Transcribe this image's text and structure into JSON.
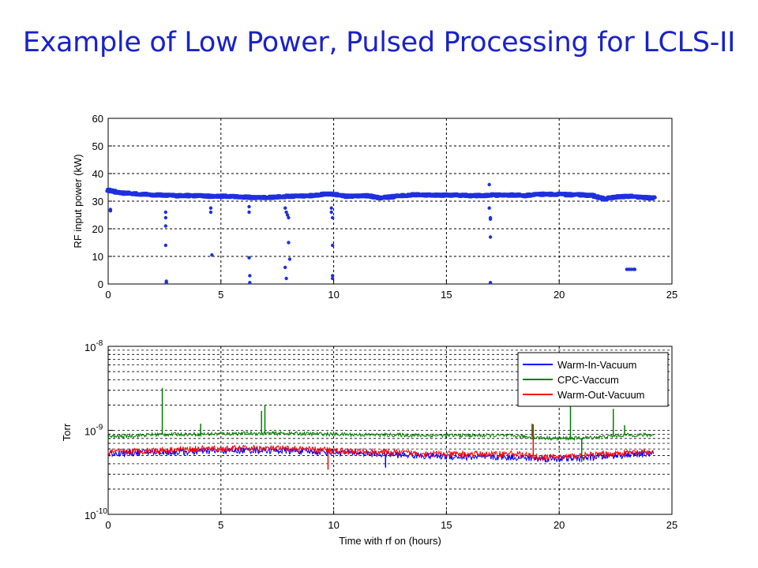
{
  "slide": {
    "title": "Example of Low Power, Pulsed Processing for LCLS-II"
  },
  "chart_data": [
    {
      "type": "scatter",
      "title": "",
      "xlabel": "",
      "ylabel": "RF input power (kW)",
      "xlim": [
        0,
        25
      ],
      "ylim": [
        0,
        60
      ],
      "xticks": [
        0,
        5,
        10,
        15,
        20,
        25
      ],
      "yticks": [
        0,
        10,
        20,
        30,
        40,
        50,
        60
      ],
      "grid": true,
      "marker_color": "#1f2fe0",
      "series": [
        {
          "x": [
            0,
            0.5,
            1,
            1.5,
            2,
            2.5,
            3,
            3.5,
            4,
            4.5,
            5,
            5.5,
            6,
            6.5,
            7,
            7.5,
            8,
            8.5,
            9,
            9.5,
            10,
            10.5,
            11,
            11.5,
            12,
            12.5,
            13,
            13.5,
            14,
            14.5,
            15,
            15.5,
            16,
            16.5,
            17,
            17.5,
            18,
            18.5,
            19,
            19.5,
            20,
            20.5,
            21,
            21.5,
            22,
            22.5,
            23,
            23.5,
            24,
            24.2
          ],
          "y": [
            34,
            33,
            32.8,
            32.5,
            32.3,
            32.2,
            32,
            32,
            32,
            31.8,
            31.8,
            31.8,
            31.5,
            31.3,
            31.3,
            31.5,
            31.8,
            31.8,
            32,
            32.5,
            32.5,
            31.8,
            31.8,
            32,
            31.2,
            31.5,
            32,
            32.3,
            32.3,
            32.2,
            32.2,
            32.2,
            32,
            32,
            32.2,
            32.2,
            32.2,
            32,
            32.5,
            32.5,
            32.5,
            32.3,
            32.3,
            32,
            30.8,
            31.5,
            31.8,
            31.5,
            31.2,
            31.2
          ]
        },
        {
          "name": "",
          "x": [
            0.1,
            0.1,
            2.55,
            2.55,
            2.55,
            2.55,
            2.58,
            2.58,
            4.55,
            4.55,
            4.6,
            6.25,
            6.25,
            6.25,
            6.28,
            6.28,
            7.85,
            7.85,
            7.9,
            7.9,
            7.95,
            8.0,
            8.0,
            8.05,
            9.9,
            9.9,
            9.95,
            9.95,
            9.95,
            9.95,
            16.9,
            16.9,
            16.95,
            16.95,
            16.95,
            16.95,
            23.0,
            23.1,
            23.2,
            23.3,
            23.35
          ],
          "y": [
            27,
            26.5,
            26,
            24,
            21,
            14,
            1,
            0.5,
            27.5,
            26,
            10.5,
            28,
            26,
            9.5,
            3,
            0.5,
            27.5,
            6,
            26,
            2,
            25,
            24,
            15,
            9,
            27.5,
            26,
            24,
            14,
            3,
            2,
            36,
            27.5,
            24,
            23.5,
            17,
            0.5,
            5.3,
            5.3,
            5.3,
            5.3,
            5.3
          ]
        }
      ]
    },
    {
      "type": "line",
      "title": "",
      "xlabel": "Time with rf on (hours)",
      "ylabel": "Torr",
      "xlim": [
        0,
        25
      ],
      "ylim": [
        1e-10,
        1e-08
      ],
      "yscale": "log",
      "xticks": [
        0,
        5,
        10,
        15,
        20,
        25
      ],
      "ytick_labels": [
        {
          "base": "10",
          "exp": "-10"
        },
        {
          "base": "10",
          "exp": "-9"
        },
        {
          "base": "10",
          "exp": "-8"
        }
      ],
      "grid": true,
      "legend_position": "top-right",
      "series": [
        {
          "name": "Warm-In-Vacuum",
          "color": "#0000ff",
          "x": [
            0,
            1,
            2,
            3,
            4,
            5,
            6,
            7,
            8,
            9,
            10,
            11,
            12,
            13,
            14,
            15,
            16,
            17,
            18,
            19,
            20,
            21,
            22,
            23,
            24.2
          ],
          "y": [
            5.3e-10,
            5.4e-10,
            5.5e-10,
            5.5e-10,
            5.6e-10,
            5.7e-10,
            5.8e-10,
            5.8e-10,
            5.7e-10,
            5.6e-10,
            5.5e-10,
            5.4e-10,
            5.2e-10,
            5.1e-10,
            5e-10,
            4.9e-10,
            4.8e-10,
            4.8e-10,
            4.8e-10,
            4.6e-10,
            4.6e-10,
            4.7e-10,
            4.9e-10,
            5.1e-10,
            5.3e-10
          ]
        },
        {
          "name": "CPC-Vaccum",
          "color": "#008000",
          "x": [
            0,
            1,
            2,
            3,
            4,
            5,
            6,
            7,
            8,
            9,
            10,
            11,
            12,
            13,
            14,
            15,
            16,
            17,
            18,
            19,
            20,
            21,
            22,
            23,
            24.2
          ],
          "y": [
            8.4e-10,
            8.6e-10,
            8.9e-10,
            9e-10,
            9e-10,
            9.1e-10,
            9.2e-10,
            9.2e-10,
            9.2e-10,
            9.1e-10,
            9e-10,
            8.9e-10,
            8.8e-10,
            8.8e-10,
            8.7e-10,
            8.7e-10,
            8.7e-10,
            8.7e-10,
            8.6e-10,
            8.2e-10,
            8e-10,
            8.1e-10,
            8.4e-10,
            8.8e-10,
            8.8e-10
          ]
        },
        {
          "name": "Warm-Out-Vacuum",
          "color": "#ff0000",
          "x": [
            0,
            1,
            2,
            3,
            4,
            5,
            6,
            7,
            8,
            9,
            10,
            11,
            12,
            13,
            14,
            15,
            16,
            17,
            18,
            19,
            20,
            21,
            22,
            23,
            24.2
          ],
          "y": [
            5.5e-10,
            5.6e-10,
            5.8e-10,
            5.9e-10,
            6e-10,
            6e-10,
            6.1e-10,
            6.1e-10,
            6e-10,
            5.9e-10,
            5.8e-10,
            5.6e-10,
            5.5e-10,
            5.4e-10,
            5.3e-10,
            5.2e-10,
            5.2e-10,
            5.2e-10,
            5.3e-10,
            4.8e-10,
            4.8e-10,
            5e-10,
            5.2e-10,
            5.4e-10,
            5.5e-10
          ]
        }
      ],
      "spikes": [
        {
          "series": "CPC-Vaccum",
          "x": 2.4,
          "y": 3.2e-09
        },
        {
          "series": "CPC-Vaccum",
          "x": 4.1,
          "y": 1.2e-09
        },
        {
          "series": "CPC-Vaccum",
          "x": 6.8,
          "y": 1.7e-09
        },
        {
          "series": "CPC-Vaccum",
          "x": 6.95,
          "y": 2e-09
        },
        {
          "series": "CPC-Vaccum",
          "x": 18.8,
          "y": 1.2e-09
        },
        {
          "series": "CPC-Vaccum",
          "x": 20.5,
          "y": 2e-09
        },
        {
          "series": "CPC-Vaccum",
          "x": 22.4,
          "y": 1.8e-09
        },
        {
          "series": "CPC-Vaccum",
          "x": 22.9,
          "y": 1.15e-09
        },
        {
          "series": "Warm-Out-Vacuum",
          "x": 18.85,
          "y": 1.18e-09
        },
        {
          "series": "Warm-Out-Vacuum",
          "x": 9.75,
          "y": 3.4e-10
        },
        {
          "series": "Warm-In-Vacuum",
          "x": 12.3,
          "y": 3.6e-10
        },
        {
          "series": "CPC-Vaccum",
          "x": 21.0,
          "y": 4.2e-10
        }
      ]
    }
  ]
}
